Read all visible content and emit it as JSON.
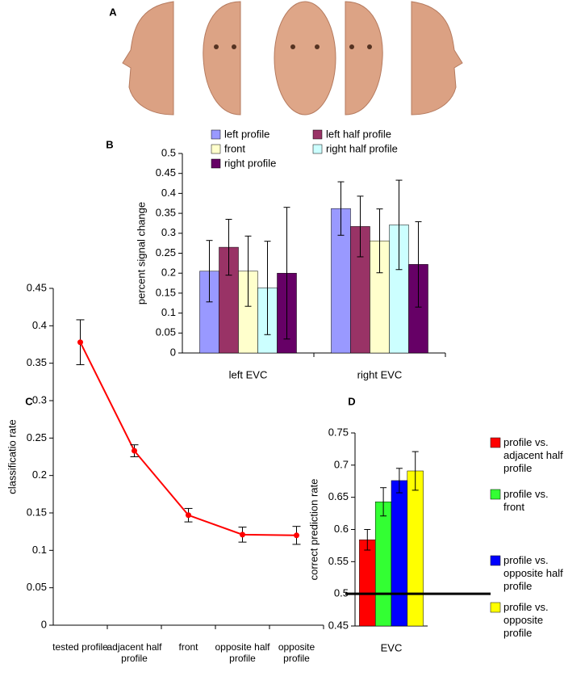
{
  "chart_data": [
    {
      "type": "image",
      "label": "A"
    },
    {
      "type": "bar",
      "label": "B",
      "y_label": "percent signal change",
      "categories": [
        "left EVC",
        "right EVC"
      ],
      "series": [
        {
          "name": "left profile",
          "color": "#9999ff",
          "values": [
            0.205,
            0.362
          ],
          "errors": [
            0.077,
            0.067
          ]
        },
        {
          "name": "left half profile",
          "color": "#993366",
          "values": [
            0.265,
            0.317
          ],
          "errors": [
            0.07,
            0.076
          ]
        },
        {
          "name": "front",
          "color": "#ffffcc",
          "values": [
            0.205,
            0.281
          ],
          "errors": [
            0.088,
            0.08
          ]
        },
        {
          "name": "right half profile",
          "color": "#ccffff",
          "values": [
            0.163,
            0.321
          ],
          "errors": [
            0.117,
            0.112
          ]
        },
        {
          "name": "right profile",
          "color": "#660066",
          "values": [
            0.2,
            0.222
          ],
          "errors": [
            0.165,
            0.107
          ]
        }
      ],
      "ylim": [
        0,
        0.5
      ],
      "yticks": [
        0,
        0.05,
        0.1,
        0.15,
        0.2,
        0.25,
        0.3,
        0.35,
        0.4,
        0.45,
        0.5
      ],
      "legend": "top"
    },
    {
      "type": "line",
      "label": "C",
      "y_label": "classificatio rate",
      "categories": [
        "tested profile",
        "adjacent half profile",
        "front",
        "opposite half profile",
        "opposite profile"
      ],
      "values": [
        0.378,
        0.233,
        0.147,
        0.121,
        0.12
      ],
      "errors": [
        0.03,
        0.008,
        0.009,
        0.01,
        0.012
      ],
      "color": "#ff0000",
      "ylim": [
        0,
        0.45
      ],
      "yticks": [
        0,
        0.05,
        0.1,
        0.15,
        0.2,
        0.25,
        0.3,
        0.35,
        0.4,
        0.45
      ]
    },
    {
      "type": "bar",
      "label": "D",
      "y_label": "correct prediction rate",
      "categories": [
        "EVC"
      ],
      "series": [
        {
          "name": "profile vs. adjacent half profile",
          "color": "#ff0000",
          "values": [
            0.584
          ],
          "errors": [
            0.016
          ]
        },
        {
          "name": "profile vs. front",
          "color": "#33ff33",
          "values": [
            0.643
          ],
          "errors": [
            0.022
          ]
        },
        {
          "name": "profile vs. opposite half profile",
          "color": "#0000ff",
          "values": [
            0.676
          ],
          "errors": [
            0.019
          ]
        },
        {
          "name": "profile vs. opposite profile",
          "color": "#ffff00",
          "values": [
            0.691
          ],
          "errors": [
            0.03
          ]
        }
      ],
      "ylim": [
        0.45,
        0.75
      ],
      "yticks": [
        0.45,
        0.5,
        0.55,
        0.6,
        0.65,
        0.7,
        0.75
      ],
      "reference_line": 0.5,
      "legend": "right"
    }
  ]
}
